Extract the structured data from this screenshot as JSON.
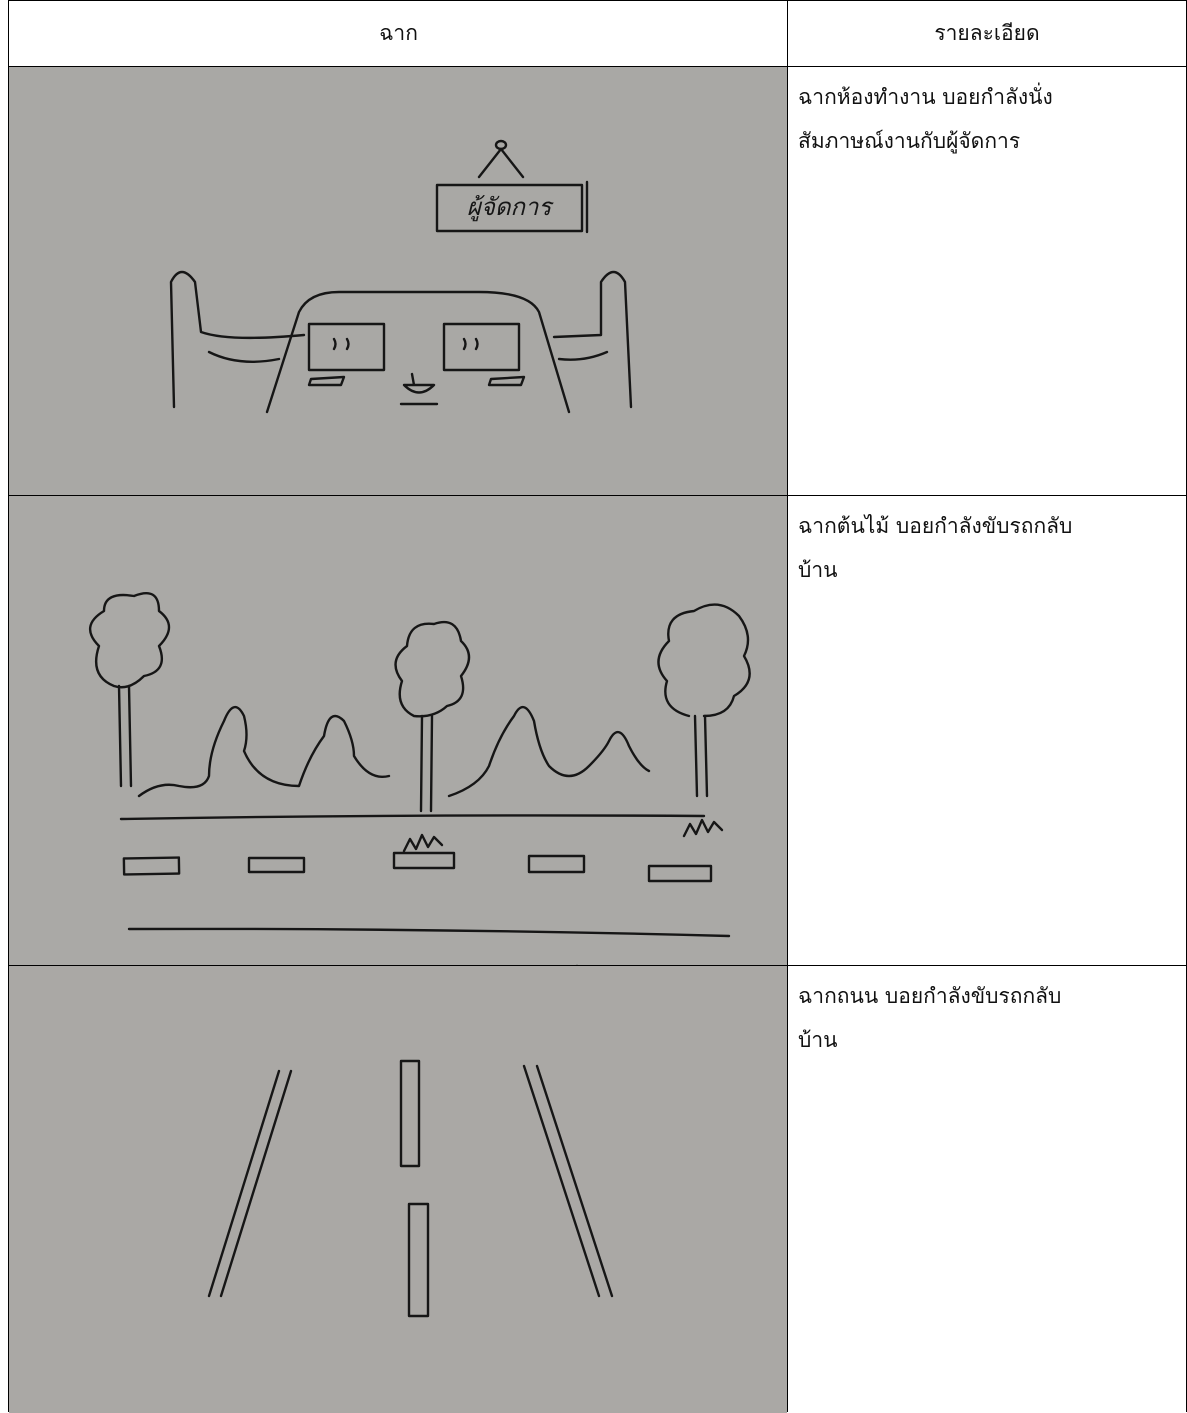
{
  "table": {
    "header": [
      "ฉาก",
      "รายละเอียด"
    ],
    "rows": [
      {
        "sketch_text": "ผู้จัดการ",
        "details": [
          "ฉากห้องทำงาน  บอยกำลังนั่ง",
          "สัมภาษณ์งานกับผู้จัดการ"
        ]
      },
      {
        "details": [
          "ฉากต้นไม้  บอยกำลังขับรถกลับ",
          "บ้าน"
        ]
      },
      {
        "details": [
          "ฉากถนน  บอยกำลังขับรถกลับ",
          "บ้าน"
        ]
      }
    ]
  }
}
